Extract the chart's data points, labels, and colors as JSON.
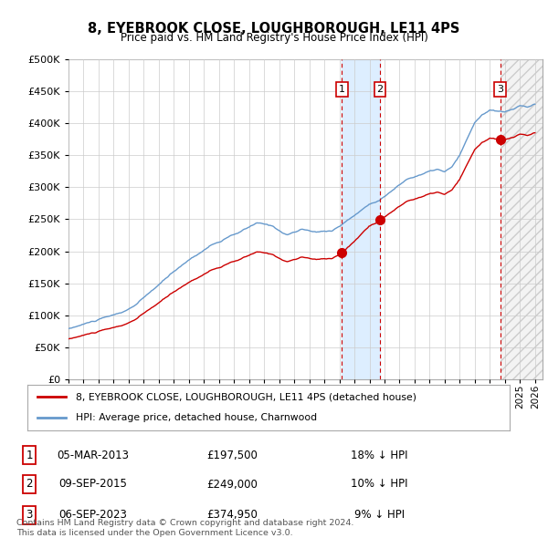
{
  "title": "8, EYEBROOK CLOSE, LOUGHBOROUGH, LE11 4PS",
  "subtitle": "Price paid vs. HM Land Registry's House Price Index (HPI)",
  "ylim": [
    0,
    500000
  ],
  "yticks": [
    0,
    50000,
    100000,
    150000,
    200000,
    250000,
    300000,
    350000,
    400000,
    450000,
    500000
  ],
  "xlim_start": 1995.0,
  "xlim_end": 2026.5,
  "sale_color": "#cc0000",
  "hpi_color": "#6699cc",
  "sale_label": "8, EYEBROOK CLOSE, LOUGHBOROUGH, LE11 4PS (detached house)",
  "hpi_label": "HPI: Average price, detached house, Charnwood",
  "transactions": [
    {
      "label": "1",
      "date_x": 2013.17,
      "price": 197500,
      "pct": "18% ↓ HPI",
      "date_str": "05-MAR-2013"
    },
    {
      "label": "2",
      "date_x": 2015.69,
      "price": 249000,
      "pct": "10% ↓ HPI",
      "date_str": "09-SEP-2015"
    },
    {
      "label": "3",
      "date_x": 2023.69,
      "price": 374950,
      "pct": "9% ↓ HPI",
      "date_str": "06-SEP-2023"
    }
  ],
  "footnote": "Contains HM Land Registry data © Crown copyright and database right 2024.\nThis data is licensed under the Open Government Licence v3.0.",
  "background_color": "#ffffff",
  "grid_color": "#cccccc"
}
